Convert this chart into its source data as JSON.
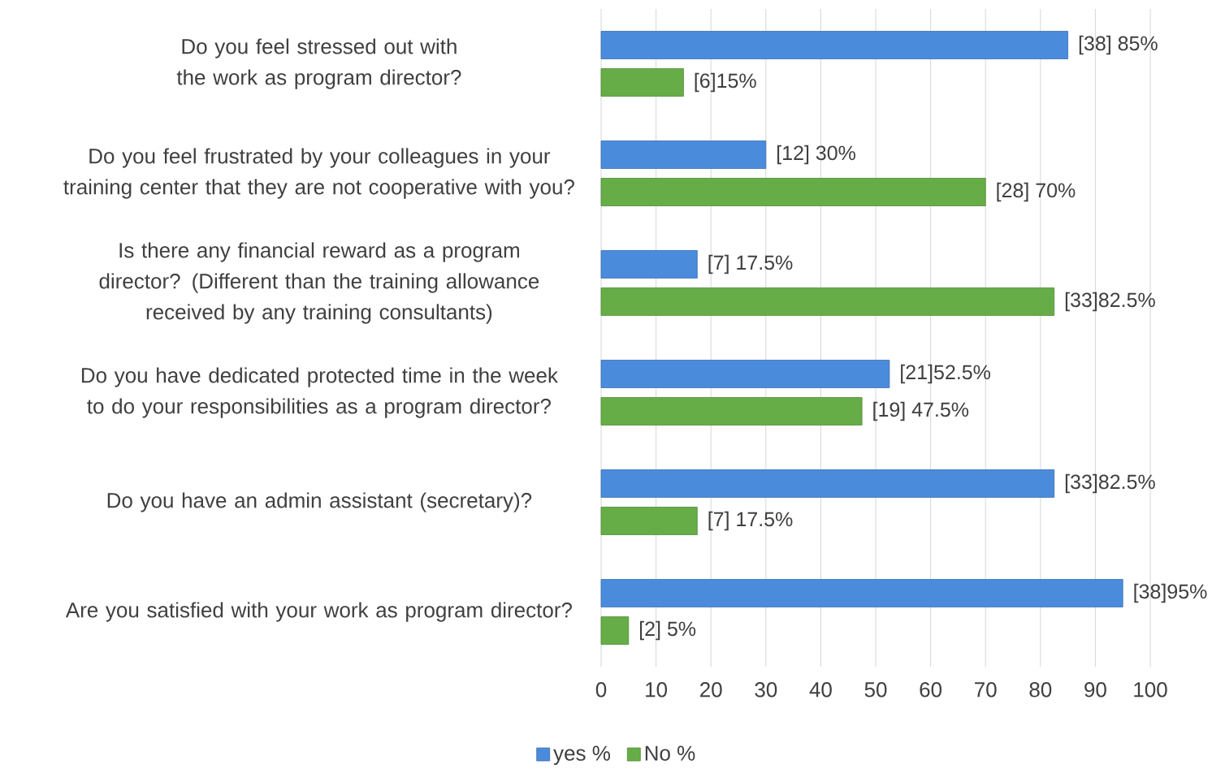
{
  "chart_data": {
    "type": "bar",
    "orientation": "horizontal",
    "categories": [
      "Do you feel stressed out with the work as program director?",
      "Do you feel frustrated by your colleagues in your training center that they are not cooperative with you?",
      "Is there any financial reward as a program director? (Different than the training allowance received by any training consultants)",
      "Do you have dedicated protected time in the week to do your responsibilities as a program director?",
      "Do you have an admin assistant (secretary)?",
      "Are you satisfied with your work as program director?"
    ],
    "series": [
      {
        "name": "yes %",
        "color": "#4a8bdc",
        "values": [
          85,
          30,
          17.5,
          52.5,
          82.5,
          95
        ],
        "value_labels": [
          "[38] 85%",
          "[12] 30%",
          "[7] 17.5%",
          "[21]52.5%",
          "[33]82.5%",
          "[38]95%"
        ]
      },
      {
        "name": "No %",
        "color": "#66ad47",
        "values": [
          15,
          70,
          82.5,
          47.5,
          17.5,
          5
        ],
        "value_labels": [
          "[6]15%",
          "[28] 70%",
          "[33]82.5%",
          "[19] 47.5%",
          "[7] 17.5%",
          "[2] 5%"
        ]
      }
    ],
    "xlim": [
      0,
      100
    ],
    "xticks": [
      0,
      10,
      20,
      30,
      40,
      50,
      60,
      70,
      80,
      90,
      100
    ],
    "grid": "x",
    "legend": "bottom"
  }
}
